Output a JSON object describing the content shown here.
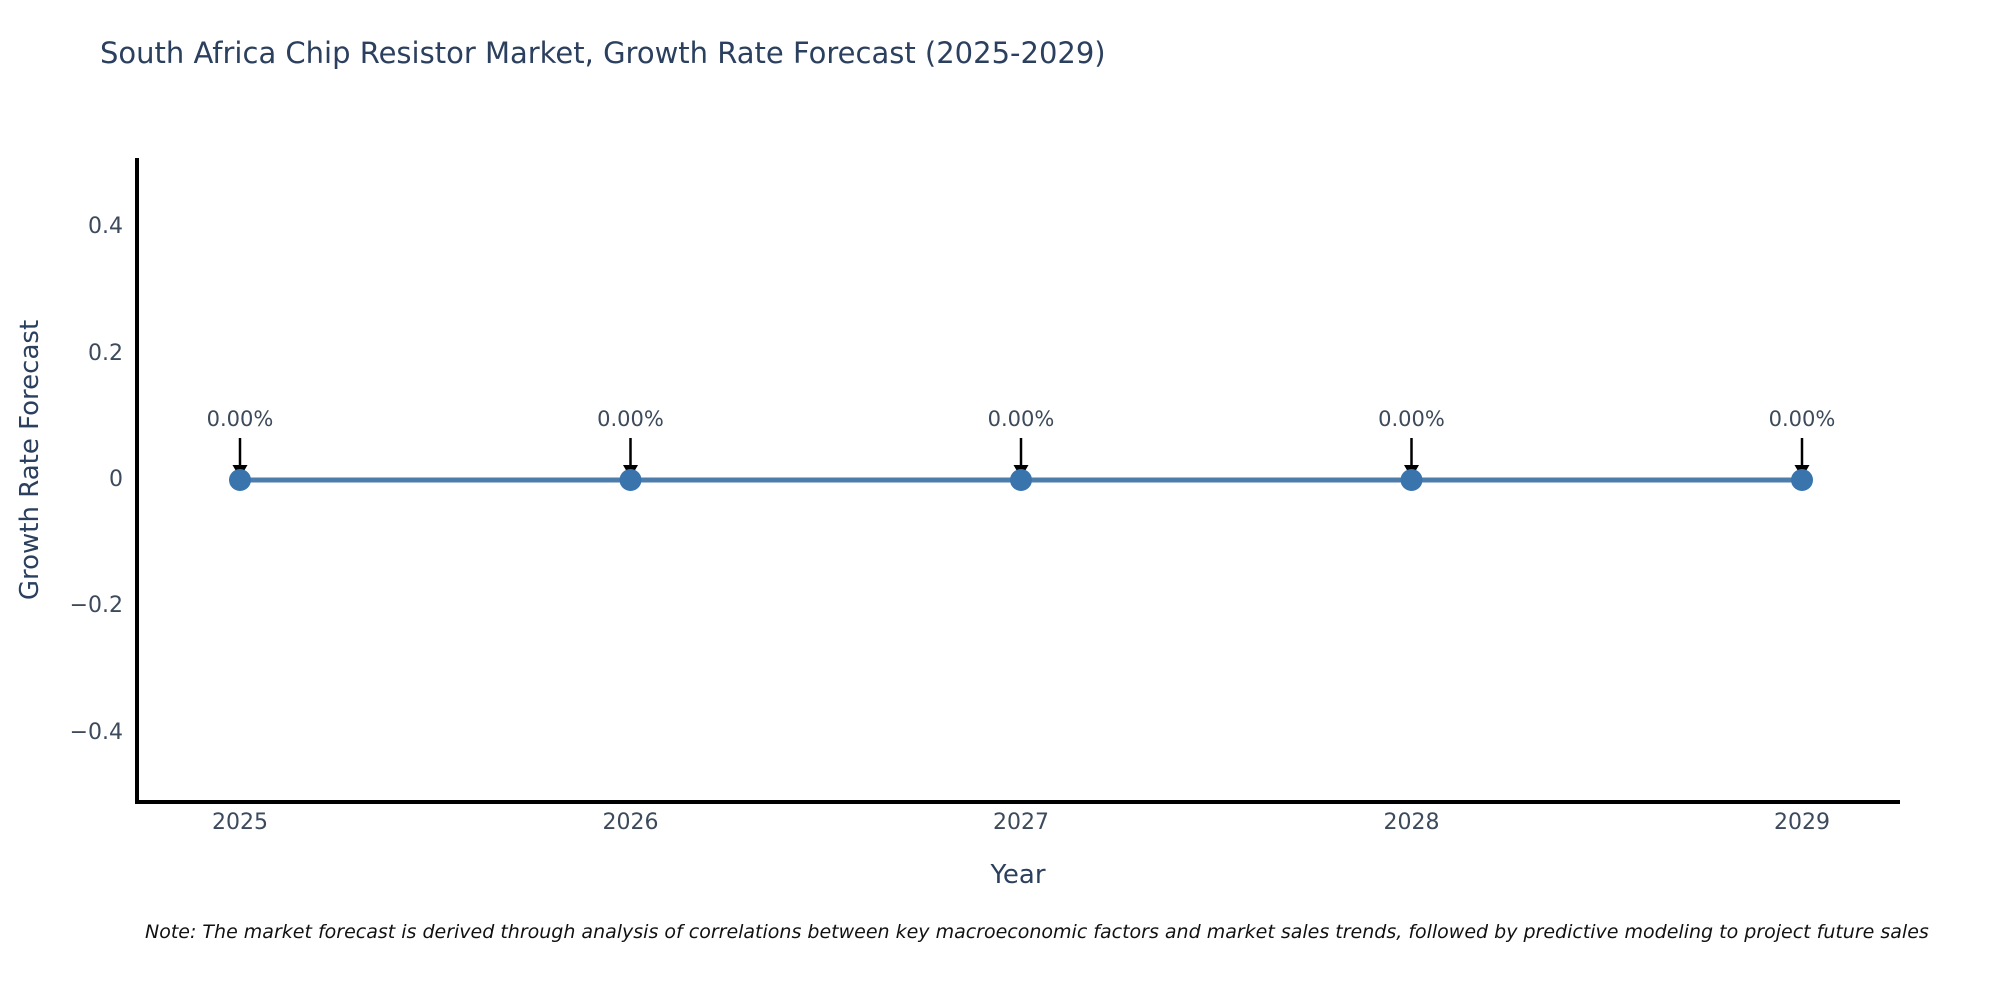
{
  "title": "South Africa Chip Resistor Market, Growth Rate Forecast (2025-2029)",
  "note": "Note: The market forecast is derived through analysis of correlations between key macroeconomic factors and market sales trends, followed by predictive modeling to project future sales",
  "chart_data": {
    "type": "line",
    "title": "South Africa Chip Resistor Market, Growth Rate Forecast (2025-2029)",
    "xlabel": "Year",
    "ylabel": "Growth Rate Forecast",
    "categories": [
      "2025",
      "2026",
      "2027",
      "2028",
      "2029"
    ],
    "series": [
      {
        "name": "Growth Rate Forecast",
        "values": [
          0,
          0,
          0,
          0,
          0
        ]
      }
    ],
    "point_labels": [
      "0.00%",
      "0.00%",
      "0.00%",
      "0.00%",
      "0.00%"
    ],
    "yticks": [
      {
        "value": 0.4,
        "label": "0.4"
      },
      {
        "value": 0.2,
        "label": "0.2"
      },
      {
        "value": 0,
        "label": "0"
      },
      {
        "value": -0.2,
        "label": "−0.2"
      },
      {
        "value": -0.4,
        "label": "−0.4"
      }
    ],
    "ylim": [
      -0.5,
      0.5
    ],
    "grid": false,
    "legend": "none",
    "colors": {
      "line": "#4c7dab",
      "marker": "#3974ad",
      "arrow": "#000000",
      "axis": "#000000",
      "title_text": "#2b3f5e",
      "tick_text": "#3c4a5c"
    }
  }
}
